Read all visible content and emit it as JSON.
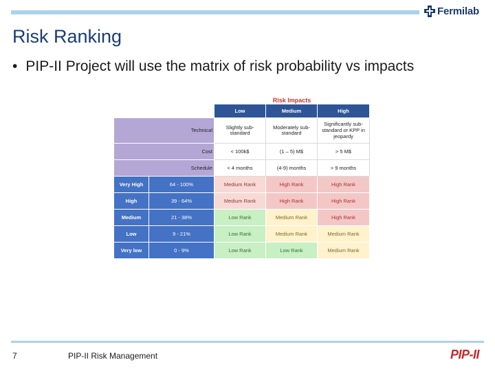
{
  "header": {
    "logo_text": "Fermilab"
  },
  "slide": {
    "title": "Risk Ranking",
    "bullet_marker": "•",
    "bullet_text": "PIP-II Project will use the matrix of risk probability vs impacts"
  },
  "matrix": {
    "caption": "Risk Impacts",
    "columns": [
      "Low",
      "Medium",
      "High"
    ],
    "impact_rows": [
      {
        "label": "Technical",
        "values": [
          "Slightly sub-standard",
          "Moderately sub-standard",
          "Significantly sub-standard or KPP in jeopardy"
        ]
      },
      {
        "label": "Cost",
        "values": [
          "< 100k$",
          "(1 – 5) M$",
          "> 5 M$"
        ]
      },
      {
        "label": "Schedule",
        "values": [
          "< 4 months",
          "(4-9) months",
          "> 9 months"
        ]
      }
    ],
    "probability_rows": [
      {
        "label": "Very High",
        "range": "64 - 100%",
        "cells": [
          "Medium Rank",
          "High Rank",
          "High Rank"
        ]
      },
      {
        "label": "High",
        "range": "39 - 64%",
        "cells": [
          "Medium Rank",
          "High Rank",
          "High Rank"
        ]
      },
      {
        "label": "Medium",
        "range": "21 - 38%",
        "cells": [
          "Low Rank",
          "Medium Rank",
          "High Rank"
        ]
      },
      {
        "label": "Low",
        "range": "9 - 21%",
        "cells": [
          "Low Rank",
          "Medium Rank",
          "Medium Rank"
        ]
      },
      {
        "label": "Very low",
        "range": "0 - 9%",
        "cells": [
          "Low Rank",
          "Low Rank",
          "Medium Rank"
        ]
      }
    ]
  },
  "footer": {
    "page_number": "7",
    "text": "PIP-II Risk Management",
    "logo_text": "PIP-II"
  }
}
